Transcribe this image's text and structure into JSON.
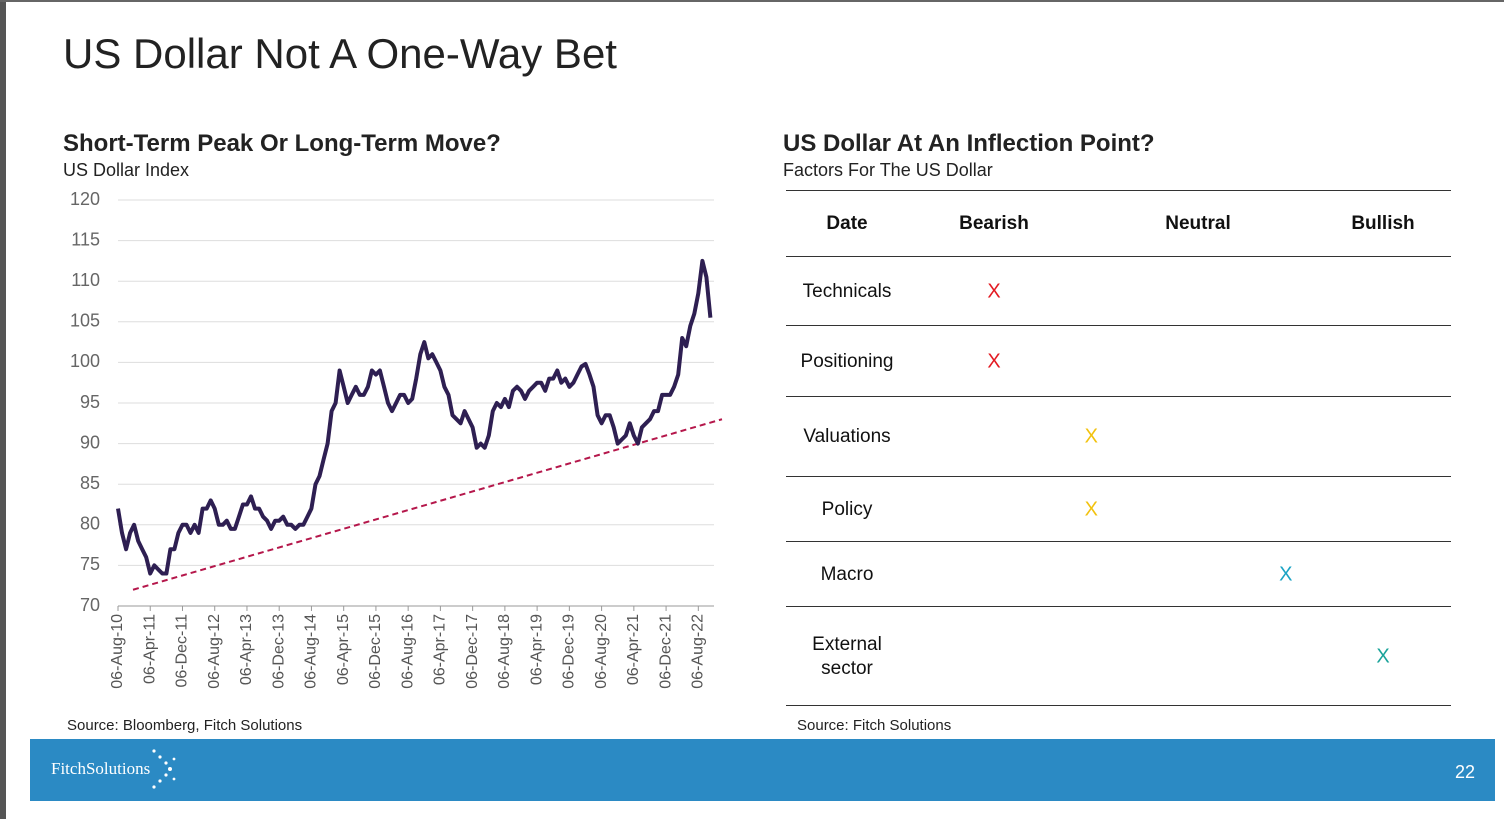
{
  "header": {
    "title": "US Dollar Not A One-Way Bet"
  },
  "chart_data": {
    "type": "line",
    "title": "Short-Term Peak Or Long-Term Move?",
    "subtitle": "US Dollar Index",
    "source": "Source: Bloomberg, Fitch Solutions",
    "categories": [
      "06-Aug-10",
      null,
      null,
      null,
      null,
      null,
      null,
      null,
      "06-Apr-11",
      null,
      null,
      null,
      null,
      null,
      null,
      null,
      "06-Dec-11",
      null,
      null,
      null,
      null,
      null,
      null,
      null,
      "06-Aug-12",
      null,
      null,
      null,
      null,
      null,
      null,
      null,
      "06-Apr-13",
      null,
      null,
      null,
      null,
      null,
      null,
      null,
      "06-Dec-13",
      null,
      null,
      null,
      null,
      null,
      null,
      null,
      "06-Aug-14",
      null,
      null,
      null,
      null,
      null,
      null,
      null,
      "06-Apr-15",
      null,
      null,
      null,
      null,
      null,
      null,
      null,
      "06-Dec-15",
      null,
      null,
      null,
      null,
      null,
      null,
      null,
      "06-Aug-16",
      null,
      null,
      null,
      null,
      null,
      null,
      null,
      "06-Apr-17",
      null,
      null,
      null,
      null,
      null,
      null,
      null,
      "06-Dec-17",
      null,
      null,
      null,
      null,
      null,
      null,
      null,
      "06-Aug-18",
      null,
      null,
      null,
      null,
      null,
      null,
      null,
      "06-Apr-19",
      null,
      null,
      null,
      null,
      null,
      null,
      null,
      "06-Dec-19",
      null,
      null,
      null,
      null,
      null,
      null,
      null,
      "06-Aug-20",
      null,
      null,
      null,
      null,
      null,
      null,
      null,
      "06-Apr-21",
      null,
      null,
      null,
      null,
      null,
      null,
      null,
      "06-Dec-21",
      null,
      null,
      null,
      null,
      null,
      null,
      null,
      "06-Aug-22",
      null,
      null,
      null
    ],
    "series": [
      {
        "color": "#2e1f52",
        "values": [
          82,
          79,
          77,
          79,
          80,
          78,
          77,
          76,
          74,
          75,
          74.5,
          74,
          74,
          77,
          77,
          79,
          80,
          80,
          79,
          80,
          79,
          82,
          82,
          83,
          82,
          80,
          80,
          80.5,
          79.5,
          79.5,
          81,
          82.5,
          82.5,
          83.5,
          82,
          82,
          81,
          80.5,
          79.5,
          80.5,
          80.5,
          81,
          80,
          80,
          79.5,
          80,
          80,
          81,
          82,
          85,
          86,
          88,
          90,
          94,
          95,
          99,
          97,
          95,
          96,
          97,
          96,
          96,
          97,
          99,
          98.5,
          99,
          97,
          95,
          94,
          95,
          96,
          96,
          95,
          95.5,
          98,
          101,
          102.5,
          100.5,
          101,
          100,
          99,
          97,
          96,
          93.5,
          93,
          92.5,
          94,
          93,
          92,
          89.5,
          90,
          89.5,
          91,
          94,
          95,
          94.5,
          95.5,
          94.5,
          96.5,
          97,
          96.5,
          95.5,
          96.5,
          97,
          97.5,
          97.5,
          96.5,
          98,
          98,
          99,
          97.5,
          98,
          97,
          97.5,
          98.5,
          99.5,
          99.8,
          98.5,
          97,
          93.5,
          92.5,
          93.5,
          93.5,
          92,
          90,
          90.5,
          91,
          92.5,
          91,
          90,
          92,
          92.5,
          93,
          94,
          94,
          96,
          96,
          96,
          97,
          98.5,
          103,
          102,
          104.5,
          106,
          108.5,
          112.5,
          110.5,
          105.5
        ]
      }
    ],
    "trendline": {
      "values": [
        72,
        93
      ],
      "color": "#b5174b"
    },
    "ylim": [
      70,
      120
    ],
    "yticks": [
      70,
      75,
      80,
      85,
      90,
      95,
      100,
      105,
      110,
      115,
      120
    ],
    "grid": true
  },
  "table": {
    "title": "US Dollar At An Inflection Point?",
    "subtitle": "Factors For The US Dollar",
    "columns": [
      "Date",
      "Bearish",
      "Neutral",
      "Bullish"
    ],
    "rows": [
      {
        "factor": "Technicals",
        "mark": "X",
        "score": 0,
        "color": "#e31b23"
      },
      {
        "factor": "Positioning",
        "mark": "X",
        "score": 0,
        "color": "#e31b23"
      },
      {
        "factor": "Valuations",
        "mark": "X",
        "score": 1,
        "color": "#f2c20f"
      },
      {
        "factor": "Policy",
        "mark": "X",
        "score": 1,
        "color": "#f2c20f"
      },
      {
        "factor": "Macro",
        "mark": "X",
        "score": 3,
        "color": "#1aa3c4"
      },
      {
        "factor": "External sector",
        "mark": "X",
        "score": 4,
        "color": "#1aa39a"
      }
    ],
    "source": "Source: Fitch Solutions"
  },
  "footer": {
    "logo": "FitchSolutions",
    "page": "22"
  }
}
